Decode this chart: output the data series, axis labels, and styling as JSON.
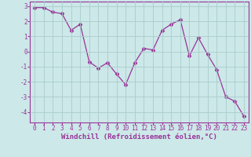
{
  "x": [
    0,
    1,
    2,
    3,
    4,
    5,
    6,
    7,
    8,
    9,
    10,
    11,
    12,
    13,
    14,
    15,
    16,
    17,
    18,
    19,
    20,
    21,
    22,
    23
  ],
  "y": [
    2.9,
    2.9,
    2.6,
    2.5,
    1.4,
    1.8,
    -0.7,
    -1.1,
    -0.75,
    -1.5,
    -2.2,
    -0.75,
    0.2,
    0.1,
    1.4,
    1.8,
    2.1,
    -0.3,
    0.9,
    -0.2,
    -1.2,
    -3.0,
    -3.3,
    -4.3
  ],
  "line_color": "#993399",
  "marker": "D",
  "marker_size": 2.5,
  "bg_color": "#cce8e8",
  "grid_color": "#aacccc",
  "axis_color": "#993399",
  "tick_color": "#993399",
  "xlabel": "Windchill (Refroidissement éolien,°C)",
  "ylim": [
    -4.7,
    3.3
  ],
  "xlim": [
    -0.5,
    23.5
  ],
  "yticks": [
    -4,
    -3,
    -2,
    -1,
    0,
    1,
    2,
    3
  ],
  "xticks": [
    0,
    1,
    2,
    3,
    4,
    5,
    6,
    7,
    8,
    9,
    10,
    11,
    12,
    13,
    14,
    15,
    16,
    17,
    18,
    19,
    20,
    21,
    22,
    23
  ],
  "label_fontsize": 6.5,
  "tick_fontsize": 5.5
}
